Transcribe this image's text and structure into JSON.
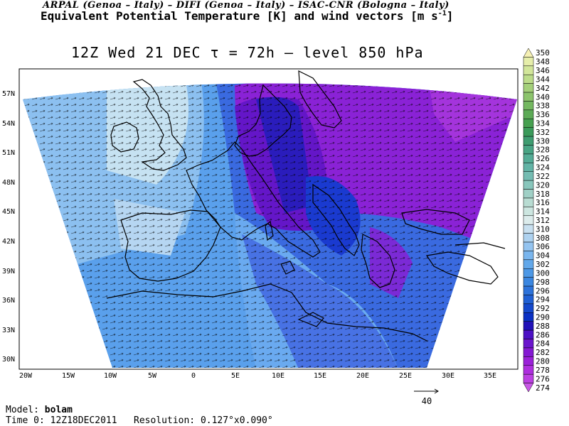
{
  "header": {
    "institutions": "ARPAL (Genoa – Italy)  –  DIFI (Genoa – Italy)  –  ISAC-CNR (Bologna – Italy)",
    "field_title": "Equivalent Potential Temperature [K] and wind vectors [m s",
    "field_title_exp": "-1",
    "field_title_end": "]",
    "run_line": "12Z Wed 21 DEC  τ = 72h  –  level 850 hPa"
  },
  "axes": {
    "lon_labels": [
      "20W",
      "15W",
      "10W",
      "5W",
      "0",
      "5E",
      "10E",
      "15E",
      "20E",
      "25E",
      "30E",
      "35E"
    ],
    "lat_labels": [
      "57N",
      "54N",
      "51N",
      "48N",
      "45N",
      "42N",
      "39N",
      "36N",
      "33N",
      "30N"
    ]
  },
  "colorbar": {
    "levels": [
      350,
      348,
      346,
      344,
      342,
      340,
      338,
      336,
      334,
      332,
      330,
      328,
      326,
      324,
      322,
      320,
      318,
      316,
      314,
      312,
      310,
      308,
      306,
      304,
      302,
      300,
      298,
      296,
      294,
      292,
      290,
      288,
      286,
      284,
      282,
      280,
      278,
      276,
      274
    ],
    "colors": [
      "#f5f0b4",
      "#e6eeaa",
      "#d2e69a",
      "#bcdc8a",
      "#a4d07a",
      "#8cc46c",
      "#74b860",
      "#5caa56",
      "#46a050",
      "#3a9a5a",
      "#3e9c70",
      "#48a484",
      "#54ac96",
      "#62b4a6",
      "#74bcb2",
      "#88c6bc",
      "#a0d0c6",
      "#b8dcd2",
      "#cce6e0",
      "#dcecec",
      "#c8e0f0",
      "#aed2f0",
      "#94c4f0",
      "#7ab6ee",
      "#62a8ea",
      "#4c98e6",
      "#3a86e0",
      "#2c72da",
      "#2060d4",
      "#1448cc",
      "#0a30c4",
      "#2010b8",
      "#4c10c4",
      "#6a14cc",
      "#8418d2",
      "#9a20d8",
      "#ae2ede",
      "#bc40e2",
      "#c858e6"
    ]
  },
  "scale": {
    "vector_label": "40"
  },
  "footer": {
    "model_label": "Model:",
    "model_name": "bolam",
    "time_label": "Time 0:",
    "time_value": "12Z18DEC2011",
    "res_label": "Resolution:",
    "res_value": "0.127°x0.090°"
  }
}
